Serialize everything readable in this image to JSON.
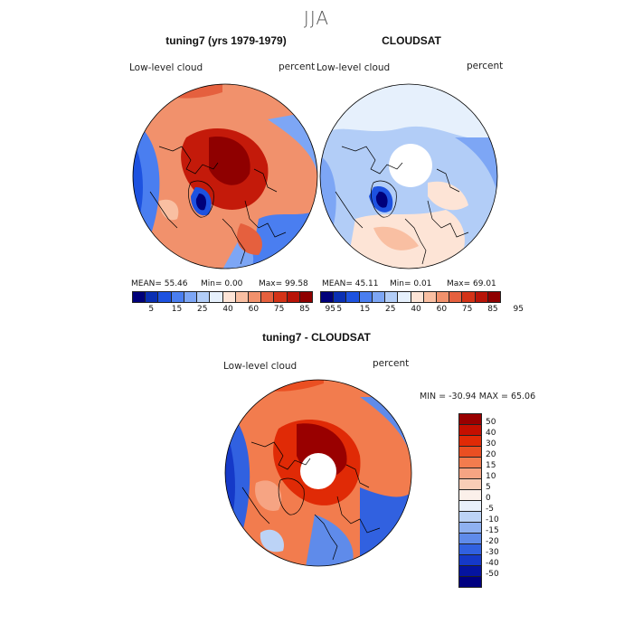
{
  "page": {
    "supertitle": "JJA",
    "bottom_title": "tuning7 - CLOUDSAT"
  },
  "panels": [
    {
      "title": "tuning7 (yrs 1979-1979)",
      "variable": "Low-level cloud",
      "units": "percent",
      "stats": {
        "mean": "MEAN= 55.46",
        "min": "Min= 0.00",
        "max": "Max= 99.58"
      }
    },
    {
      "title": "CLOUDSAT",
      "variable": "Low-level cloud",
      "units": "percent",
      "stats": {
        "mean": "MEAN= 45.11",
        "min": "Min= 0.01",
        "max": "Max= 69.01"
      }
    },
    {
      "variable": "Low-level cloud",
      "units": "percent",
      "minmax": "MIN = -30.94 MAX = 65.06"
    }
  ],
  "colorbar_top": {
    "colors": [
      "#00007a",
      "#0a2fb3",
      "#1d52e0",
      "#4a7ef0",
      "#7da6f5",
      "#b2cdf7",
      "#e6f0fc",
      "#fde4d6",
      "#f9bfa2",
      "#f1916c",
      "#e5603e",
      "#d43317",
      "#b81408",
      "#8f0000"
    ],
    "tick_labels": [
      "5",
      "15",
      "25",
      "40",
      "60",
      "75",
      "85",
      "95"
    ]
  },
  "colorbar_diff": {
    "colors": [
      "#990000",
      "#c40f00",
      "#e02a06",
      "#ea4f22",
      "#f27c4e",
      "#f6a483",
      "#f9cdb6",
      "#fbf0ea",
      "#e8f0fb",
      "#bcd3f6",
      "#8fb1f1",
      "#5f8bea",
      "#3161e0",
      "#1539c8",
      "#0514a0",
      "#000080"
    ],
    "tick_labels": [
      "50",
      "40",
      "30",
      "20",
      "15",
      "10",
      "5",
      "0",
      "-5",
      "-10",
      "-15",
      "-20",
      "-30",
      "-40",
      "-50"
    ]
  },
  "map_colors": {
    "deep_red": "#8f0000",
    "red": "#c41a0a",
    "orange": "#e5603e",
    "salmon": "#f1916c",
    "peach": "#f9bfa2",
    "light_peach": "#fde4d6",
    "white": "#ffffff",
    "pale_blue": "#e6f0fc",
    "light_blue": "#b2cdf7",
    "blue": "#7da6f5",
    "mid_blue": "#4a7ef0",
    "strong_blue": "#1d52e0",
    "navy": "#00007a",
    "coast": "#000000"
  }
}
